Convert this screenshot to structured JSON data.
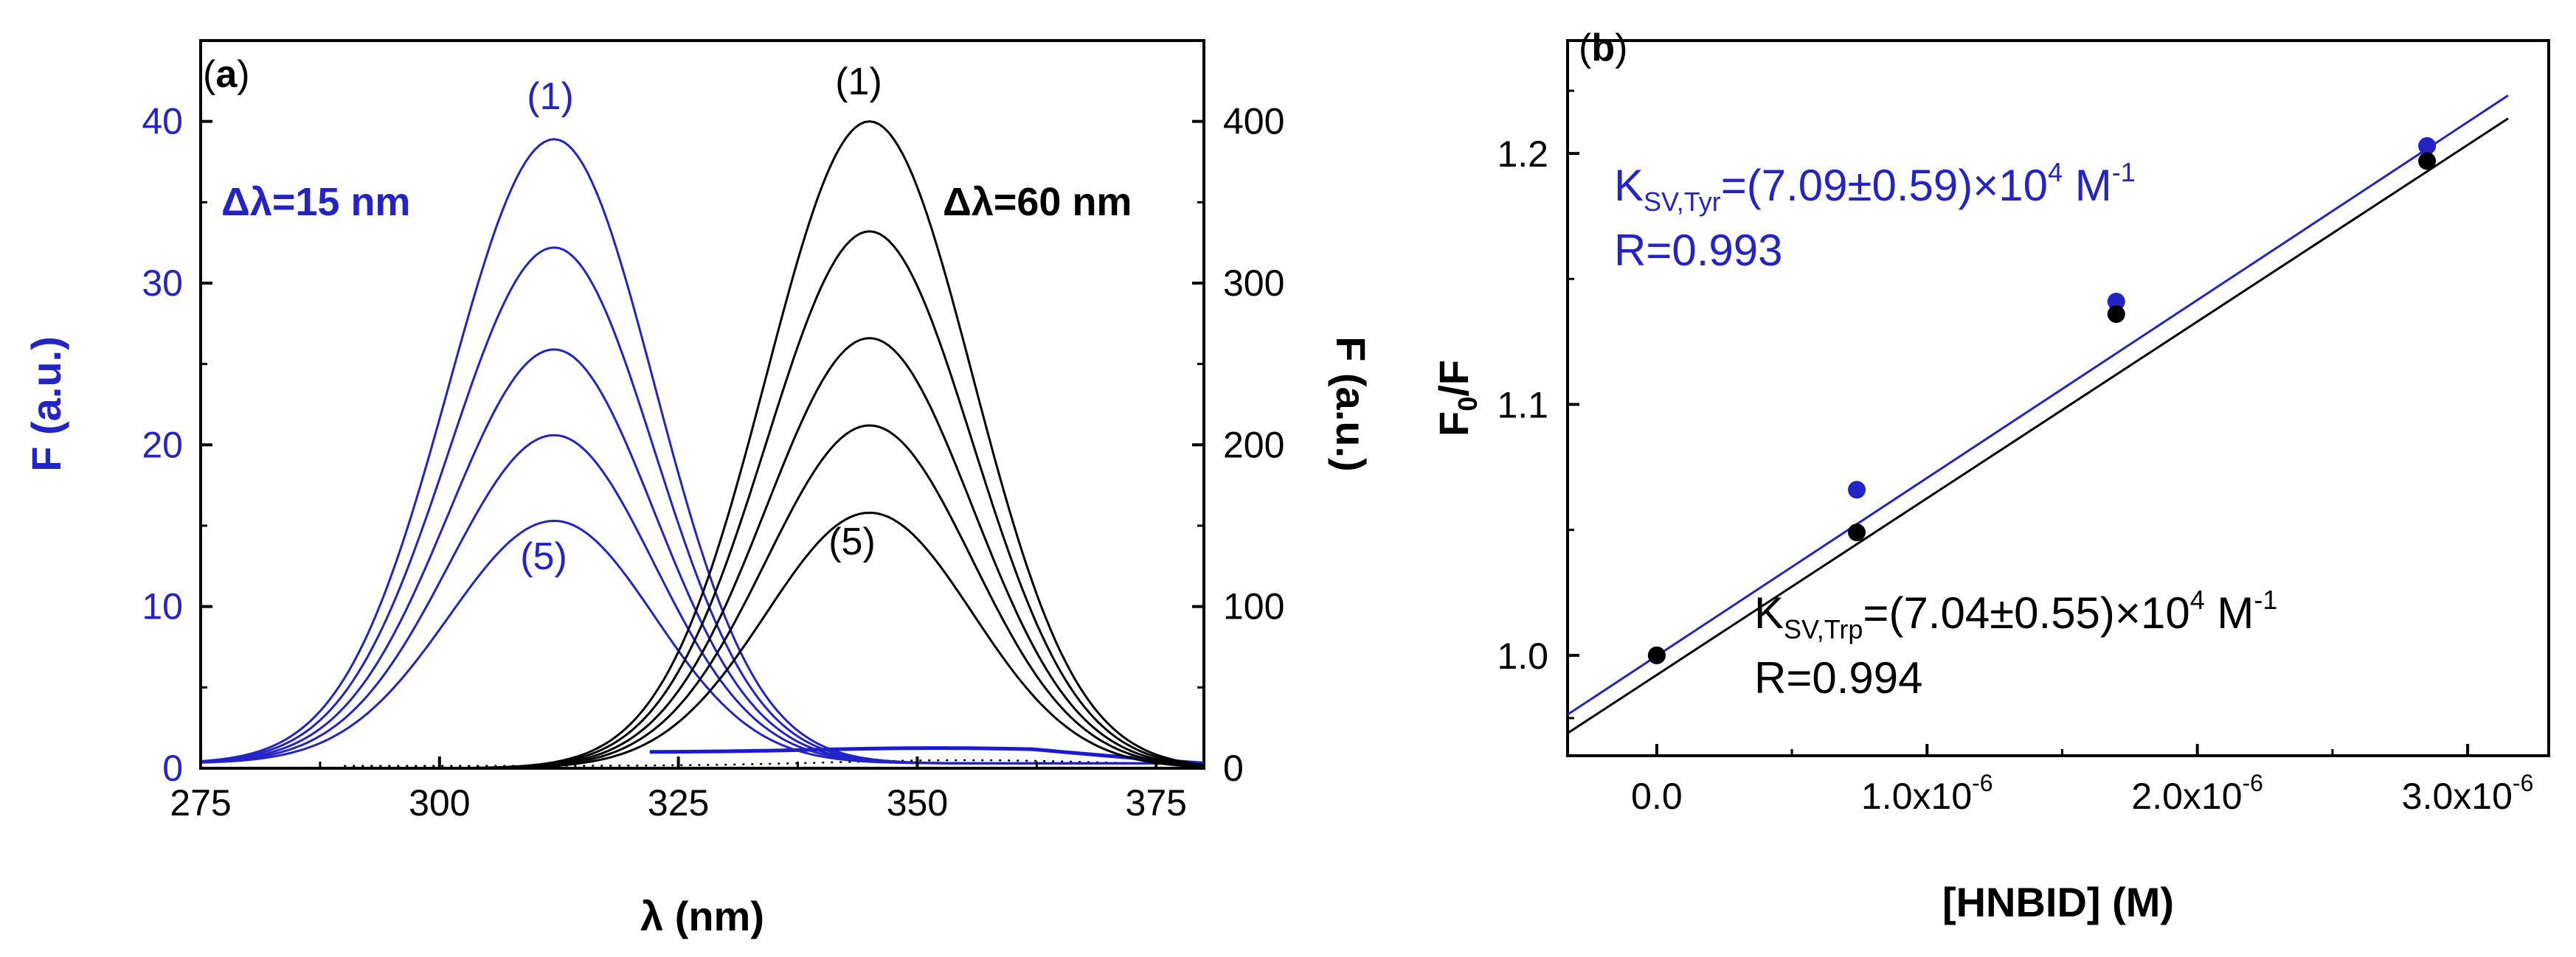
{
  "chart_data": [
    {
      "panel": "(a)",
      "type": "line",
      "xlabel": "λ (nm)",
      "ylabel_left": "F (a.u.)",
      "ylabel_right": "F (a.u.)",
      "xlim": [
        275,
        380
      ],
      "ylim_left": [
        0,
        45
      ],
      "ylim_right": [
        0,
        450
      ],
      "x_ticks": [
        275,
        300,
        325,
        350,
        375
      ],
      "y_ticks_left": [
        0,
        10,
        20,
        30,
        40
      ],
      "y_ticks_right": [
        0,
        100,
        200,
        300,
        400
      ],
      "colors": {
        "left_axis": "#2323c8",
        "right_axis": "#000000",
        "baseline": "#1a1ad6"
      },
      "annotations": {
        "left_delta": "Δλ=15 nm",
        "right_delta": "Δλ=60 nm",
        "left_first": "(1)",
        "left_last": "(5)",
        "right_first": "(1)",
        "right_last": "(5)"
      },
      "series_groups": [
        {
          "name": "Δλ=15 nm (Tyr)",
          "axis": "left",
          "center": 312,
          "sigma_left": 11,
          "sigma_right": 10.5,
          "offset": 0.3,
          "peaks": [
            38.6,
            31.9,
            25.6,
            20.3,
            15.0
          ]
        },
        {
          "name": "Δλ=60 nm (Trp)",
          "axis": "right",
          "center": 345,
          "sigma": 10.8,
          "peaks": [
            400,
            332,
            266,
            212,
            158
          ]
        }
      ]
    },
    {
      "panel": "(b)",
      "type": "scatter",
      "xlabel": "[HNBID] (M)",
      "ylabel": "F0/F",
      "xlim": [
        -3.3e-07,
        3.3e-06
      ],
      "ylim": [
        0.96,
        1.245
      ],
      "x_ticks": [
        0,
        1e-06,
        2e-06,
        3e-06
      ],
      "x_tick_labels": [
        "0.0",
        "1.0x10",
        "2.0x10",
        "3.0x10"
      ],
      "x_tick_exp": "-6",
      "y_ticks": [
        1.0,
        1.1,
        1.2
      ],
      "y_tick_labels": [
        "1.0",
        "1.1",
        "1.2"
      ],
      "series": [
        {
          "name": "Tyr",
          "color": "#2323c8",
          "x": [
            0,
            7.4e-07,
            1.7e-06,
            2.85e-06
          ],
          "y": [
            1.0,
            1.066,
            1.141,
            1.203
          ],
          "fit": {
            "slope": 70900,
            "intercept": 0.9998
          }
        },
        {
          "name": "Trp",
          "color": "#000000",
          "x": [
            0,
            7.4e-07,
            1.7e-06,
            2.85e-06
          ],
          "y": [
            1.0,
            1.049,
            1.136,
            1.197
          ],
          "fit": {
            "slope": 70400,
            "intercept": 0.9922
          }
        }
      ],
      "annotations": {
        "tyr_k": "K",
        "tyr_k_sub": "SV,Tyr",
        "tyr_k_value": "=(7.09±0.59)×10",
        "tyr_k_exp": "4",
        "tyr_k_unit": " M",
        "tyr_k_unit_exp": "-1",
        "tyr_r": "R=0.993",
        "trp_k": "K",
        "trp_k_sub": "SV,Trp",
        "trp_k_value": "=(7.04±0.55)×10",
        "trp_k_exp": "4",
        "trp_k_unit": " M",
        "trp_k_unit_exp": "-1",
        "trp_r": "R=0.994",
        "ylabel_F": "F",
        "ylabel_sub": "0",
        "ylabel_rest": "/F"
      }
    }
  ]
}
